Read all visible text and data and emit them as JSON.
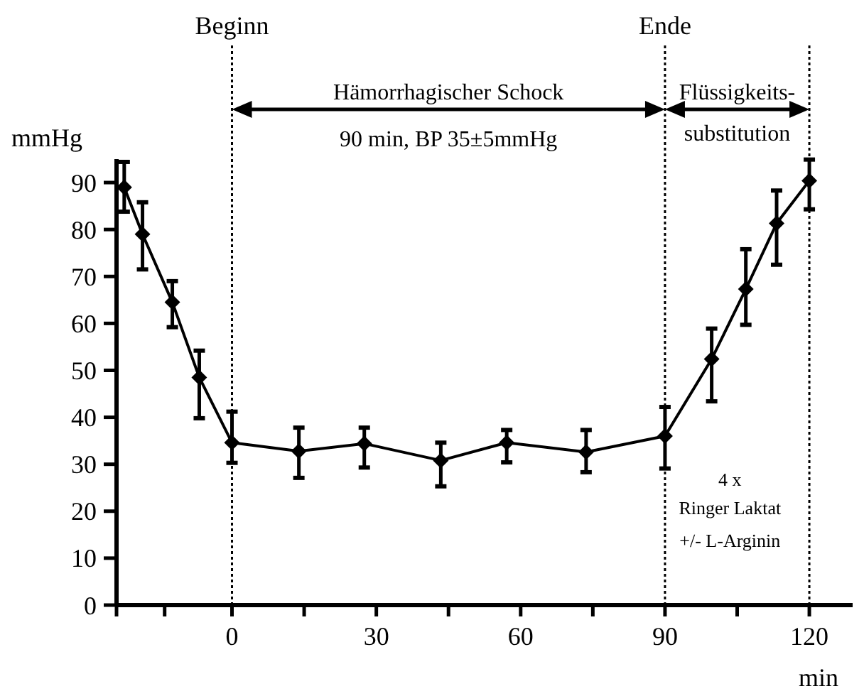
{
  "chart_data": {
    "type": "line",
    "xlabel": "min",
    "ylabel": "mmHg",
    "x": [
      -22.4,
      -18.6,
      -12.4,
      -6.8,
      0,
      13.9,
      27.5,
      43.4,
      57.1,
      73.6,
      90,
      99.7,
      106.8,
      113.2,
      120
    ],
    "series": [
      {
        "color": "#000000",
        "values": [
          89,
          79,
          64.5,
          48.5,
          34.6,
          32.8,
          34.4,
          30.8,
          34.6,
          32.6,
          36,
          52.4,
          67.3,
          81.3,
          90.4
        ],
        "errors": [
          [
            83.8,
            94.4
          ],
          [
            71.5,
            85.8
          ],
          [
            59.2,
            69
          ],
          [
            39.8,
            54.2
          ],
          [
            30.3,
            41.2
          ],
          [
            27.1,
            37.8
          ],
          [
            29.3,
            37.8
          ],
          [
            25.3,
            34.6
          ],
          [
            30.4,
            37.3
          ],
          [
            28.3,
            37.3
          ],
          [
            29.1,
            42.2
          ],
          [
            43.4,
            58.9
          ],
          [
            59.7,
            75.8
          ],
          [
            72.5,
            88.3
          ],
          [
            84.3,
            94.9
          ]
        ]
      }
    ],
    "xlim": [
      -24,
      129
    ],
    "ylim": [
      0,
      95
    ],
    "xticks": [
      {
        "value": -24,
        "label": null
      },
      {
        "value": -14,
        "label": null
      },
      0,
      {
        "value": 15,
        "label": null
      },
      30,
      {
        "value": 45,
        "label": null
      },
      60,
      {
        "value": 75,
        "label": null
      },
      90,
      {
        "value": 105,
        "label": null
      },
      120
    ],
    "yticks": [
      0,
      10,
      20,
      30,
      40,
      50,
      60,
      70,
      80,
      90
    ],
    "marker": "diamond",
    "line_style": "solid",
    "grid": false,
    "ref_lines": [
      {
        "axis": "x",
        "value": 0,
        "label": "Beginn",
        "line_style": "dotted"
      },
      {
        "axis": "x",
        "value": 90,
        "label": "Ende",
        "line_style": "dotted"
      },
      {
        "axis": "x",
        "value": 120,
        "label": null,
        "line_style": "dotted"
      }
    ],
    "annotations": [
      "Hämorrhagischer Schock",
      "90 min, BP 35±5mmHg",
      "Flüssigkeits-",
      "substitution",
      "4 x",
      "Ringer Laktat",
      "+/- L-Arginin"
    ]
  }
}
